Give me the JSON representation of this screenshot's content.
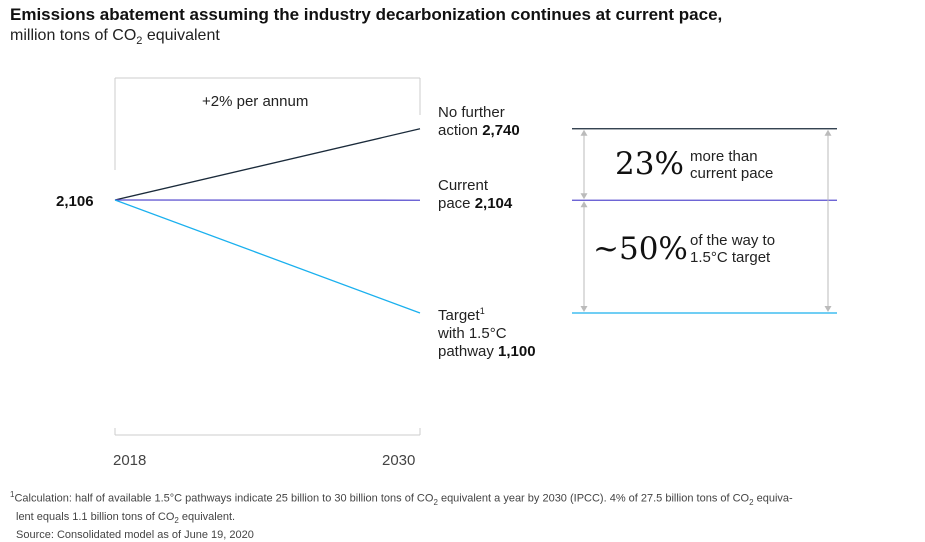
{
  "header": {
    "title": "Emissions abatement assuming the industry decarbonization continues at current pace,",
    "subtitle_pre": "million tons of CO",
    "subtitle_sub": "2",
    "subtitle_post": " equivalent"
  },
  "chart_data": {
    "type": "line",
    "x": [
      2018,
      2030
    ],
    "x_tick_labels": [
      "2018",
      "2030"
    ],
    "start_value_label": "2,106",
    "growth_note": "+2% per annum",
    "series": [
      {
        "values": [
          2106,
          2740
        ],
        "color": "#1a2a3a",
        "label_line1": "No further",
        "label_line2_text": "action ",
        "value_label": "2,740"
      },
      {
        "values": [
          2106,
          2104
        ],
        "color": "#5a4fcf",
        "label_line1": "Current",
        "label_line2_text": "pace ",
        "value_label": "2,104"
      },
      {
        "values": [
          2106,
          1100
        ],
        "color": "#1ab0ee",
        "label_line1": "Target",
        "label_line1_sup": "1",
        "label_line2_text": "with 1.5°C",
        "label_line3_text": "pathway ",
        "value_label": "1,100"
      }
    ],
    "comparisons": [
      {
        "big": "23%",
        "line1": "more than",
        "line2": "current pace"
      },
      {
        "big": "~50%",
        "line1": "of the way to",
        "line2": "1.5°C target"
      }
    ]
  },
  "footnote": {
    "sup": "1",
    "line1_a": "Calculation: half of available 1.5°C pathways indicate 25 billion to 30 billion tons of CO",
    "line1_sub": "2",
    "line1_b": " equivalent a year by 2030 (IPCC). 4% of 27.5 billion tons of CO",
    "line1_sub2": "2",
    "line1_c": " equiva-",
    "line2_a": "lent equals 1.1 billion tons of CO",
    "line2_sub": "2",
    "line2_b": " equivalent.",
    "source": "Source: Consolidated model as of June 19, 2020"
  },
  "colors": {
    "no_further_action": "#1a2a3a",
    "current_pace": "#5a4fcf",
    "target": "#1ab0ee",
    "axis_gray": "#cccccc",
    "arrow_gray": "#bbbbbb"
  }
}
